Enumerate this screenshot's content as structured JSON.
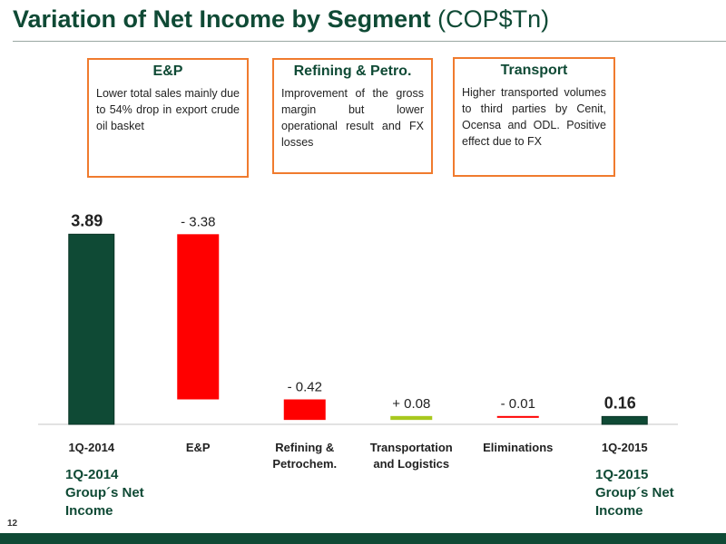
{
  "header": {
    "title_bold": "Variation of Net Income by Segment",
    "title_unit": "(COP$Tn)"
  },
  "boxes": {
    "ep": {
      "title": "E&P",
      "text": "Lower total sales mainly due to 54% drop in export crude oil basket"
    },
    "refining": {
      "title": "Refining & Petro.",
      "text": "Improvement of the gross margin but lower operational result and FX losses"
    },
    "transport": {
      "title": "Transport",
      "text": "Higher transported volumes to third parties by Cenit, Ocensa and ODL. Positive effect due to FX"
    }
  },
  "side_labels": {
    "start": [
      "1Q-2014",
      "Group´s Net",
      "Income"
    ],
    "end": [
      "1Q-2015",
      "Group´s Net",
      "Income"
    ]
  },
  "page_number": "12",
  "colors": {
    "total": "#0f4a35",
    "negative": "#ff0000",
    "positive": "#a8c81e",
    "accent_border": "#f07b2e"
  },
  "chart_data": {
    "type": "bar",
    "subtype": "waterfall",
    "categories": [
      "1Q-2014",
      "E&P",
      "Refining & Petrochem.",
      "Transportation and Logistics",
      "Eliminations",
      "1Q-2015"
    ],
    "category_lines": [
      [
        "1Q-2014"
      ],
      [
        "E&P"
      ],
      [
        "Refining &",
        "Petrochem."
      ],
      [
        "Transportation",
        "and Logistics"
      ],
      [
        "Eliminations"
      ],
      [
        "1Q-2015"
      ]
    ],
    "values": [
      3.89,
      -3.38,
      -0.42,
      0.08,
      -0.01,
      0.16
    ],
    "kinds": [
      "total",
      "delta",
      "delta",
      "delta",
      "delta",
      "total"
    ],
    "data_labels": [
      "3.89",
      "- 3.38",
      "- 0.42",
      "+ 0.08",
      "- 0.01",
      "0.16"
    ],
    "ylim": [
      0,
      4.1
    ],
    "grid": false
  }
}
